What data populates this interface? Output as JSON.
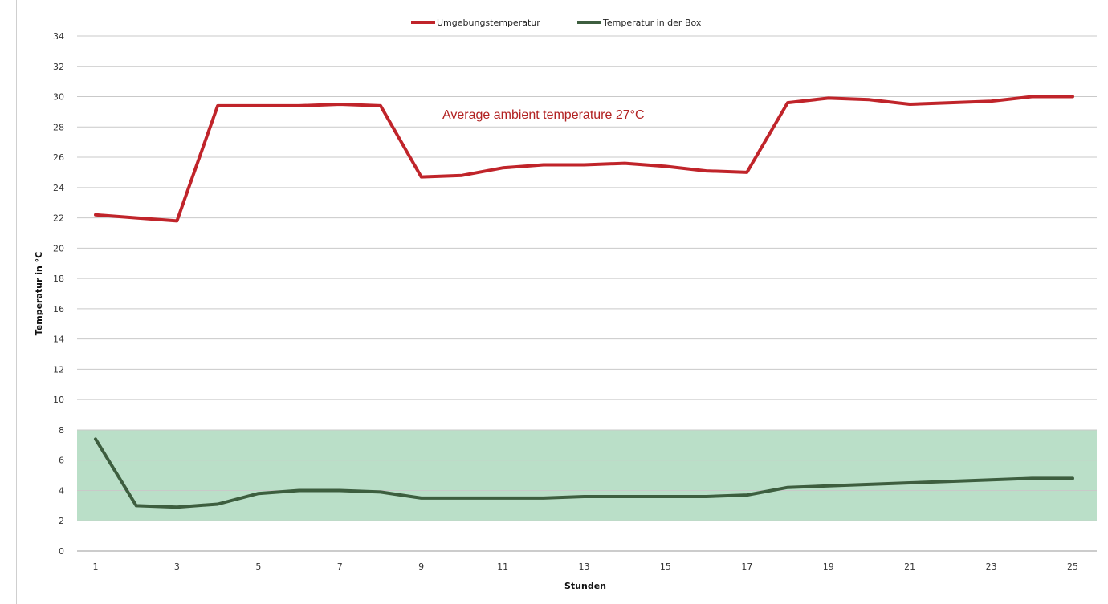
{
  "chart_data": {
    "type": "line",
    "x": [
      1,
      2,
      3,
      4,
      5,
      6,
      7,
      8,
      9,
      10,
      11,
      12,
      13,
      14,
      15,
      16,
      17,
      18,
      19,
      20,
      21,
      22,
      23,
      24,
      25
    ],
    "xticks": [
      1,
      3,
      5,
      7,
      9,
      11,
      13,
      15,
      17,
      19,
      21,
      23,
      25
    ],
    "xlabel": "Stunden",
    "ylabel": "Temperatur in °C",
    "ylim": [
      0,
      34
    ],
    "yticks": [
      0,
      2,
      4,
      6,
      8,
      10,
      12,
      14,
      16,
      18,
      20,
      22,
      24,
      26,
      28,
      30,
      32,
      34
    ],
    "grid": true,
    "legend_position": "top-center",
    "band": {
      "from": 2,
      "to": 8,
      "color": "#b3dcc2"
    },
    "annotation": {
      "text": "Average ambient temperature 27°C",
      "color": "#b22222"
    },
    "series": [
      {
        "name": "Umgebungstemperatur",
        "color": "#c0242a",
        "values": [
          22.2,
          22.0,
          21.8,
          29.4,
          29.4,
          29.4,
          29.5,
          29.4,
          24.7,
          24.8,
          25.3,
          25.5,
          25.5,
          25.6,
          25.4,
          25.1,
          25.0,
          29.6,
          29.9,
          29.8,
          29.5,
          29.6,
          29.7,
          30.0,
          30.0
        ]
      },
      {
        "name": "Temperatur in der Box",
        "color": "#3d5e3f",
        "values": [
          7.4,
          3.0,
          2.9,
          3.1,
          3.8,
          4.0,
          4.0,
          3.9,
          3.5,
          3.5,
          3.5,
          3.5,
          3.6,
          3.6,
          3.6,
          3.6,
          3.7,
          4.2,
          4.3,
          4.4,
          4.5,
          4.6,
          4.7,
          4.8,
          4.8
        ]
      }
    ]
  }
}
